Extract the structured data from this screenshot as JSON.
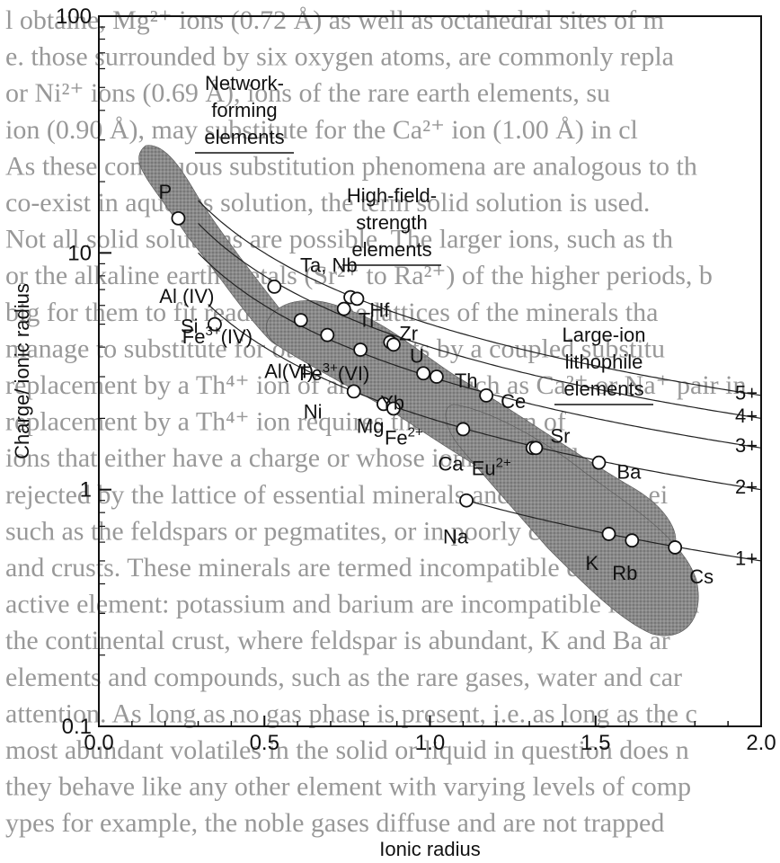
{
  "chart_data": {
    "type": "scatter",
    "title": "",
    "xlabel": "Ionic radius",
    "ylabel": "Charge/ ionic radius",
    "xlim": [
      0.0,
      2.0
    ],
    "ylim": [
      0.1,
      100
    ],
    "y_scale": "log",
    "x_ticks": [
      "0.0",
      "0.5",
      "1.0",
      "1.5",
      "2.0"
    ],
    "y_ticks": [
      "0.1",
      "1",
      "10",
      "100"
    ],
    "points": [
      {
        "label": "P",
        "x": 0.24,
        "y": 14.0
      },
      {
        "label": "Si",
        "x": 0.35,
        "y": 5.0
      },
      {
        "label": "Al (IV)",
        "x": 0.53,
        "y": 7.2
      },
      {
        "label": "Fe3+(IV)",
        "x": 0.61,
        "y": 5.2
      },
      {
        "label": "Al(VI)",
        "x": 0.69,
        "y": 4.5
      },
      {
        "label": "Ta, Nb",
        "x": 0.76,
        "y": 6.5
      },
      {
        "label": "Ti",
        "x": 0.74,
        "y": 5.8
      },
      {
        "label": "Hf",
        "x": 0.78,
        "y": 6.4
      },
      {
        "label": "Fe3+(VI)",
        "x": 0.79,
        "y": 3.9
      },
      {
        "label": "Zr",
        "x": 0.88,
        "y": 4.2
      },
      {
        "label": "U",
        "x": 0.89,
        "y": 4.1
      },
      {
        "label": "Th",
        "x": 1.02,
        "y": 3.0
      },
      {
        "label": "Ni",
        "x": 0.77,
        "y": 2.6
      },
      {
        "label": "Mg",
        "x": 0.86,
        "y": 2.3
      },
      {
        "label": "Fe2+",
        "x": 0.89,
        "y": 2.2
      },
      {
        "label": "Yb",
        "x": 0.98,
        "y": 3.1
      },
      {
        "label": "Ce",
        "x": 1.17,
        "y": 2.5
      },
      {
        "label": "Ca",
        "x": 1.1,
        "y": 1.8
      },
      {
        "label": "Eu2+",
        "x": 1.31,
        "y": 1.5
      },
      {
        "label": "Sr",
        "x": 1.32,
        "y": 1.5
      },
      {
        "label": "Ba",
        "x": 1.51,
        "y": 1.3
      },
      {
        "label": "Na",
        "x": 1.11,
        "y": 0.9
      },
      {
        "label": "K",
        "x": 1.54,
        "y": 0.65
      },
      {
        "label": "Rb",
        "x": 1.61,
        "y": 0.61
      },
      {
        "label": "Cs",
        "x": 1.74,
        "y": 0.57
      }
    ],
    "charge_lines": [
      {
        "label": "5+",
        "charge": 5
      },
      {
        "label": "4+",
        "charge": 4
      },
      {
        "label": "3+",
        "charge": 3
      },
      {
        "label": "2+",
        "charge": 2
      },
      {
        "label": "1+",
        "charge": 1
      }
    ],
    "regions": [
      {
        "label": "Network-forming elements"
      },
      {
        "label": "High-field-strength elements"
      },
      {
        "label": "Large-ion lithophile elements"
      }
    ]
  },
  "background_text": [
    "l obtaine, Mg²⁺ ions (0.72 Å) as well as octahedral sites of m",
    "e. those surrounded by six oxygen atoms, are commonly repla",
    "or Ni²⁺ ions (0.69 Å), ions of the rare earth elements, su",
    "ion (0.90 Å), may substitute for the Ca²⁺ ion (1.00 Å) in cl",
    "As these continuous substitution phenomena are analogous to th",
    "co-exist in aqueous solution, the term solid solution is used.",
    "Not all solid solutions are possible. The larger ions, such as th",
    "or the alkaline earth metals (Sr²⁺ to Ra²⁺) of the higher periods, b",
    "big for them to fit readily into the lattices of the minerals tha",
    "manage to substitute for other elements by a coupled substitu",
    "replacement by a Th⁴⁺ ion of an element such as Ca²⁺ or Na⁺ pair in",
    "replacement by a Th⁴⁺ ion requires the formation of",
    "ions that either have a charge or whose ionic radius d",
    "rejected by the lattice of essential minerals and concentrate ei",
    "such as the feldspars or pegmatites, or in poorly characterized",
    "and crusts. These minerals are termed incompatible elemen",
    "active element: potassium and barium are incompatible in the ea",
    "the continental crust, where feldspar is abundant, K and Ba ar",
    "elements and compounds, such as the rare gases, water and car",
    "attention. As long as no gas phase is present, i.e. as long as the c",
    "most abundant volatiles in the solid or liquid in question does n",
    "they behave like any other element with varying levels of comp",
    "ypes for example, the noble gases diffuse and are not trapped"
  ]
}
